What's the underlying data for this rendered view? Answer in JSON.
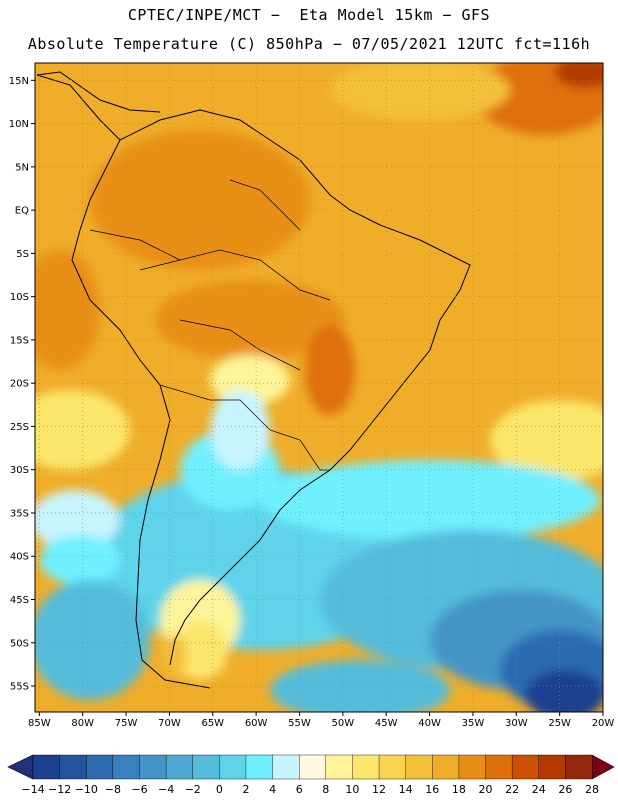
{
  "header": {
    "title_line1": "CPTEC/INPE/MCT −  Eta Model 15km − GFS",
    "title_line2": "Absolute Temperature (C) 850hPa − 07/05/2021 12UTC fct=116h"
  },
  "axes": {
    "lat_labels": [
      "15N",
      "10N",
      "5N",
      "EQ",
      "5S",
      "10S",
      "15S",
      "20S",
      "25S",
      "30S",
      "35S",
      "40S",
      "45S",
      "50S",
      "55S"
    ],
    "lat_values": [
      15,
      10,
      5,
      0,
      -5,
      -10,
      -15,
      -20,
      -25,
      -30,
      -35,
      -40,
      -45,
      -50,
      -55
    ],
    "lon_labels": [
      "85W",
      "80W",
      "75W",
      "70W",
      "65W",
      "60W",
      "55W",
      "50W",
      "45W",
      "40W",
      "35W",
      "30W",
      "25W",
      "20W"
    ],
    "lon_values": [
      -85,
      -80,
      -75,
      -70,
      -65,
      -60,
      -55,
      -50,
      -45,
      -40,
      -35,
      -30,
      -25,
      -20
    ],
    "lat_range": [
      -58,
      17
    ],
    "lon_range": [
      -85.5,
      -20
    ]
  },
  "colorbar": {
    "labels": [
      "-14",
      "-12",
      "-10",
      "-8",
      "-6",
      "-4",
      "-2",
      "0",
      "2",
      "4",
      "6",
      "8",
      "10",
      "12",
      "14",
      "16",
      "18",
      "20",
      "22",
      "24",
      "26",
      "28"
    ],
    "colors": [
      "#1c3f8f",
      "#23559f",
      "#2c6bb0",
      "#3a80bf",
      "#4594c8",
      "#4fa7d3",
      "#55bcdc",
      "#5fd3ea",
      "#6ff0ff",
      "#c8f4ff",
      "#fff8e0",
      "#fef59a",
      "#fbe66c",
      "#f8d450",
      "#f3c03a",
      "#efad2a",
      "#e88f17",
      "#df6f08",
      "#cc5000",
      "#b23a00",
      "#93280a"
    ],
    "left_arrow_color": "#23307a",
    "right_arrow_color": "#7a0014"
  }
}
